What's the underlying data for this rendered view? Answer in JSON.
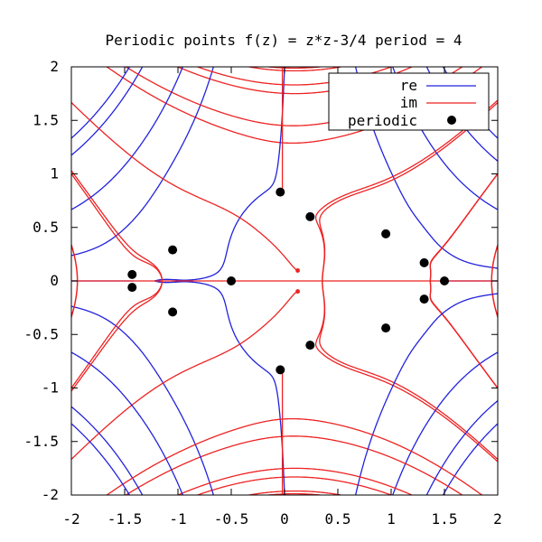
{
  "chart_data": {
    "type": "line",
    "title": "Periodic points f(z) = z*z-3/4 period = 4",
    "xlabel": "",
    "ylabel": "",
    "xlim": [
      -2,
      2
    ],
    "ylim": [
      -2,
      2
    ],
    "xticks": [
      "-2",
      "-1.5",
      "-1",
      "-0.5",
      "0",
      "0.5",
      "1",
      "1.5",
      "2"
    ],
    "yticks": [
      "2",
      "1.5",
      "1",
      "0.5",
      "0",
      "-0.5",
      "-1",
      "-1.5",
      "-2"
    ],
    "grid": false,
    "legend_position": "top-right",
    "series": [
      {
        "name": "re",
        "color": "#2222dd",
        "kind": "line",
        "description_values": "contour lines of real part"
      },
      {
        "name": "im",
        "color": "#ee2222",
        "kind": "line",
        "description_values": "contour lines of imaginary part"
      },
      {
        "name": "periodic",
        "color": "#000000",
        "kind": "points",
        "points": [
          [
            -0.5,
            0
          ],
          [
            1.5,
            0
          ],
          [
            -1.43,
            0.06
          ],
          [
            -1.43,
            -0.06
          ],
          [
            -1.05,
            0.29
          ],
          [
            -1.05,
            -0.29
          ],
          [
            -0.04,
            0.83
          ],
          [
            -0.04,
            -0.83
          ],
          [
            0.24,
            0.6
          ],
          [
            0.24,
            -0.6
          ],
          [
            0.95,
            0.44
          ],
          [
            0.95,
            -0.44
          ],
          [
            1.31,
            0.17
          ],
          [
            1.31,
            -0.17
          ]
        ]
      }
    ]
  }
}
